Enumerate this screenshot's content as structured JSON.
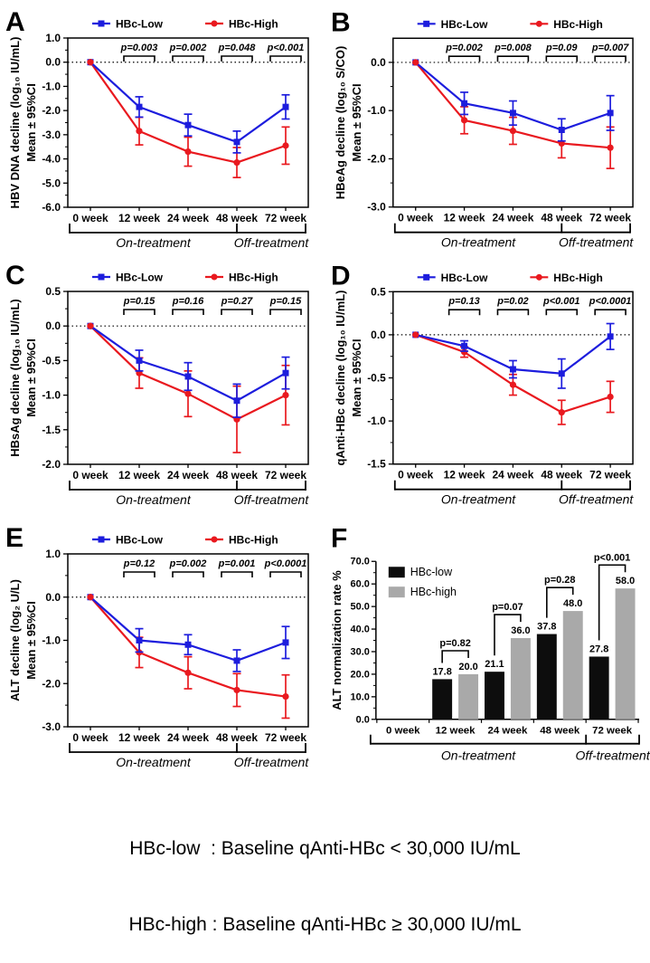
{
  "figure": {
    "caption_line1": "HBc-low  : Baseline qAnti-HBc < 30,000 IU/mL",
    "caption_line2": "HBc-high : Baseline qAnti-HBc ≥ 30,000 IU/mL"
  },
  "colors": {
    "hbc_low_line": "#1d1ddd",
    "hbc_high_line": "#e9191f",
    "p_significant": "#e9191f",
    "p_not_significant": "#000000",
    "bar_low": "#0d0d0d",
    "bar_high": "#a9a9a9"
  },
  "x_categories": [
    "0 week",
    "12 week",
    "24 week",
    "48 week",
    "72 week"
  ],
  "phases": {
    "on": "On-treatment",
    "off": "Off-treatment"
  },
  "chart_data": [
    {
      "panel": "A",
      "type": "line",
      "legend": [
        "HBc-Low",
        "HBc-High"
      ],
      "ylabel": "HBV DNA decline (log₁₀ IU/mL)",
      "ylabel2": "Mean ± 95%CI",
      "categories": [
        "0 week",
        "12 week",
        "24 week",
        "48 week",
        "72 week"
      ],
      "ytop": 1.0,
      "ybottom": -6.0,
      "yticks": [
        "1.0",
        "0.0",
        "-1.0",
        "-2.0",
        "-3.0",
        "-4.0",
        "-5.0",
        "-6.0"
      ],
      "series": [
        {
          "name": "HBc-Low",
          "values": [
            0,
            -1.85,
            -2.6,
            -3.3,
            -1.85
          ],
          "err": [
            0,
            0.42,
            0.45,
            0.45,
            0.5
          ]
        },
        {
          "name": "HBc-High",
          "values": [
            0,
            -2.85,
            -3.7,
            -4.15,
            -3.45
          ],
          "err": [
            0,
            0.57,
            0.6,
            0.62,
            0.77
          ]
        }
      ],
      "p_values": [
        {
          "label": "p=0.003",
          "sig": true
        },
        {
          "label": "p=0.002",
          "sig": true
        },
        {
          "label": "p=0.048",
          "sig": true
        },
        {
          "label": "p<0.001",
          "sig": true
        }
      ]
    },
    {
      "panel": "B",
      "type": "line",
      "legend": [
        "HBc-Low",
        "HBc-High"
      ],
      "ylabel": "HBeAg decline (log₁₀ S/CO)",
      "ylabel2": "Mean ± 95%CI",
      "categories": [
        "0 week",
        "12 week",
        "24 week",
        "48 week",
        "72 week"
      ],
      "ytop": 0.5,
      "ybottom": -3.0,
      "yticks": [
        "0.0",
        "-1.0",
        "-2.0",
        "-3.0"
      ],
      "series": [
        {
          "name": "HBc-Low",
          "values": [
            0,
            -0.85,
            -1.05,
            -1.4,
            -1.05
          ],
          "err": [
            0,
            0.23,
            0.25,
            0.23,
            0.36
          ]
        },
        {
          "name": "HBc-High",
          "values": [
            0,
            -1.2,
            -1.42,
            -1.68,
            -1.77
          ],
          "err": [
            0,
            0.28,
            0.28,
            0.3,
            0.43
          ]
        }
      ],
      "p_values": [
        {
          "label": "p=0.002",
          "sig": true
        },
        {
          "label": "p=0.008",
          "sig": true
        },
        {
          "label": "p=0.09",
          "sig": false
        },
        {
          "label": "p=0.007",
          "sig": true
        }
      ]
    },
    {
      "panel": "C",
      "type": "line",
      "legend": [
        "HBc-Low",
        "HBc-High"
      ],
      "ylabel": "HBsAg decline (log₁₀ IU/mL)",
      "ylabel2": "Mean ± 95%CI",
      "categories": [
        "0 week",
        "12 week",
        "24 week",
        "48 week",
        "72 week"
      ],
      "ytop": 0.5,
      "ybottom": -2.0,
      "yticks": [
        "0.5",
        "0.0",
        "-0.5",
        "-1.0",
        "-1.5",
        "-2.0"
      ],
      "series": [
        {
          "name": "HBc-Low",
          "values": [
            0,
            -0.5,
            -0.73,
            -1.08,
            -0.68
          ],
          "err": [
            0,
            0.15,
            0.2,
            0.24,
            0.23
          ]
        },
        {
          "name": "HBc-High",
          "values": [
            0,
            -0.68,
            -0.98,
            -1.35,
            -1.0
          ],
          "err": [
            0,
            0.22,
            0.33,
            0.48,
            0.43
          ]
        }
      ],
      "p_values": [
        {
          "label": "p=0.15",
          "sig": false
        },
        {
          "label": "p=0.16",
          "sig": false
        },
        {
          "label": "p=0.27",
          "sig": false
        },
        {
          "label": "p=0.15",
          "sig": false
        }
      ]
    },
    {
      "panel": "D",
      "type": "line",
      "legend": [
        "HBc-Low",
        "HBc-High"
      ],
      "ylabel": "qAnti-HBc decline (log₁₀ IU/mL)",
      "ylabel2": "Mean ± 95%CI",
      "categories": [
        "0 week",
        "12 week",
        "24 week",
        "48 week",
        "72 week"
      ],
      "ytop": 0.5,
      "ybottom": -1.5,
      "yticks": [
        "0.5",
        "0.0",
        "-0.5",
        "-1.0",
        "-1.5"
      ],
      "series": [
        {
          "name": "HBc-Low",
          "values": [
            0,
            -0.13,
            -0.4,
            -0.45,
            -0.02
          ],
          "err": [
            0,
            0.06,
            0.1,
            0.17,
            0.15
          ]
        },
        {
          "name": "HBc-High",
          "values": [
            0,
            -0.2,
            -0.58,
            -0.9,
            -0.72
          ],
          "err": [
            0,
            0.06,
            0.12,
            0.14,
            0.18
          ]
        }
      ],
      "p_values": [
        {
          "label": "p=0.13",
          "sig": false
        },
        {
          "label": "p=0.02",
          "sig": true
        },
        {
          "label": "p<0.001",
          "sig": true
        },
        {
          "label": "p<0.0001",
          "sig": true
        }
      ]
    },
    {
      "panel": "E",
      "type": "line",
      "legend": [
        "HBc-Low",
        "HBc-High"
      ],
      "ylabel": "ALT decline (log₂ U/L)",
      "ylabel2": "Mean ± 95%CI",
      "categories": [
        "0 week",
        "12 week",
        "24 week",
        "48 week",
        "72 week"
      ],
      "ytop": 1.0,
      "ybottom": -3.0,
      "yticks": [
        "1.0",
        "0.0",
        "-1.0",
        "-2.0",
        "-3.0"
      ],
      "series": [
        {
          "name": "HBc-Low",
          "values": [
            0,
            -1.0,
            -1.1,
            -1.47,
            -1.05
          ],
          "err": [
            0,
            0.27,
            0.23,
            0.25,
            0.37
          ]
        },
        {
          "name": "HBc-High",
          "values": [
            0,
            -1.28,
            -1.75,
            -2.15,
            -2.3
          ],
          "err": [
            0,
            0.35,
            0.37,
            0.38,
            0.5
          ]
        }
      ],
      "p_values": [
        {
          "label": "p=0.12",
          "sig": false
        },
        {
          "label": "p=0.002",
          "sig": true
        },
        {
          "label": "p=0.001",
          "sig": true
        },
        {
          "label": "p<0.0001",
          "sig": true
        }
      ]
    },
    {
      "panel": "F",
      "type": "bar",
      "legend": [
        "HBc-low",
        "HBc-high"
      ],
      "ylabel": "ALT normalization rate %",
      "categories": [
        "0 week",
        "12 week",
        "24 week",
        "48 week",
        "72 week"
      ],
      "ytop": 70,
      "ybottom": 0,
      "yticks": [
        "0.0",
        "10.0",
        "20.0",
        "30.0",
        "40.0",
        "50.0",
        "60.0",
        "70.0"
      ],
      "series": [
        {
          "name": "HBc-low",
          "values": [
            null,
            17.8,
            21.1,
            37.8,
            27.8
          ]
        },
        {
          "name": "HBc-high",
          "values": [
            null,
            20.0,
            36.0,
            48.0,
            58.0
          ]
        }
      ],
      "value_labels": [
        [
          "",
          "17.8",
          "21.1",
          "37.8",
          "27.8"
        ],
        [
          "",
          "20.0",
          "36.0",
          "48.0",
          "58.0"
        ]
      ],
      "p_values": [
        {
          "label": "p=0.82",
          "sig": false
        },
        {
          "label": "p=0.07",
          "sig": false
        },
        {
          "label": "p=0.28",
          "sig": false
        },
        {
          "label": "p<0.001",
          "sig": true
        }
      ]
    }
  ]
}
